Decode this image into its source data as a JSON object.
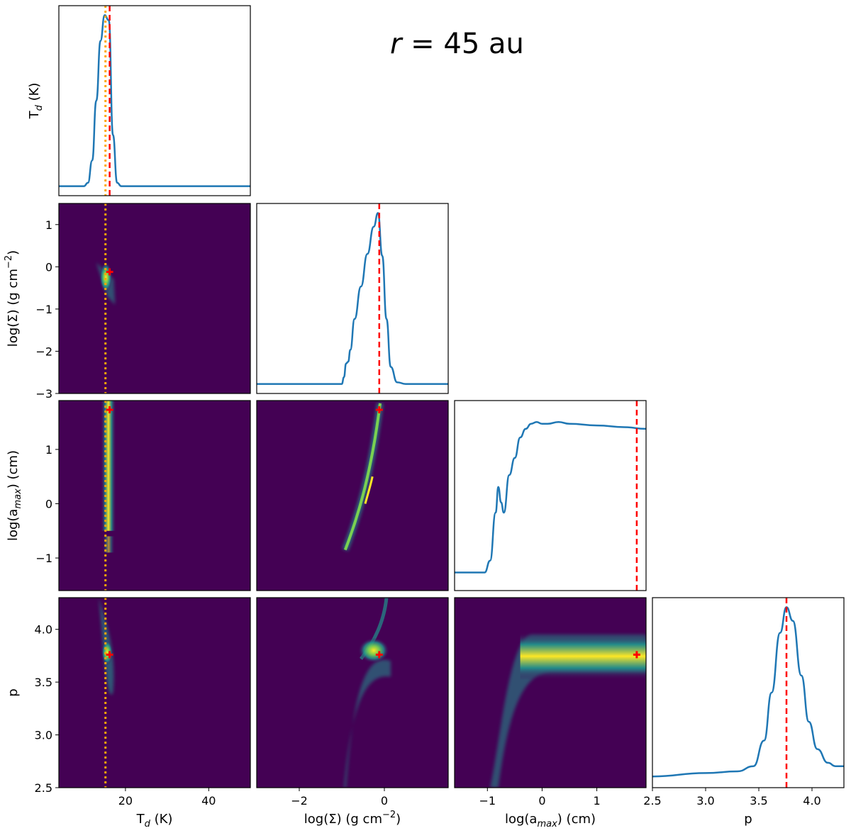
{
  "chart_data": {
    "type": "corner_plot",
    "title": "r = 45 au",
    "title_parts": {
      "var": "r",
      "rest": " = 45 au"
    },
    "params": [
      {
        "key": "Td",
        "label": "T_d (K)",
        "label_main": "T",
        "label_sub": "d",
        "label_tail": " (K)",
        "range": [
          4,
          50
        ],
        "ticks": [
          20,
          40
        ],
        "tick_labels": [
          "20",
          "40"
        ],
        "best": 16.2,
        "reference": 15.2
      },
      {
        "key": "logS",
        "label": "log(Σ) (g cm^-2)",
        "label_main": "log(Σ) (g cm",
        "label_sup": "−2",
        "label_tail": ")",
        "range": [
          -3,
          1.5
        ],
        "ticks": [
          -2,
          0
        ],
        "tick_labels": [
          "−2",
          "0"
        ],
        "y_ticks": [
          1,
          0,
          -1,
          -2,
          -3
        ],
        "y_tick_labels": [
          "1",
          "0",
          "−1",
          "−2",
          "−3"
        ],
        "best": -0.12
      },
      {
        "key": "logA",
        "label": "log(a_max) (cm)",
        "label_main": "log(a",
        "label_sub": "max",
        "label_tail": ") (cm)",
        "range": [
          -1.6,
          1.9
        ],
        "ticks": [
          -1,
          0,
          1
        ],
        "tick_labels": [
          "−1",
          "0",
          "1"
        ],
        "y_ticks": [
          1,
          0,
          -1
        ],
        "y_tick_labels": [
          "1",
          "0",
          "−1"
        ],
        "best": 1.73
      },
      {
        "key": "p",
        "label": "p",
        "label_main": "p",
        "label_tail": "",
        "range": [
          2.5,
          4.3
        ],
        "ticks": [
          2.5,
          3.0,
          3.5,
          4.0
        ],
        "tick_labels": [
          "2.5",
          "3.0",
          "3.5",
          "4.0"
        ],
        "y_ticks": [
          2.5,
          3.0,
          3.5,
          4.0
        ],
        "y_tick_labels": [
          "2.5",
          "3.0",
          "3.5",
          "4.0"
        ],
        "best": 3.76
      }
    ],
    "diagonal_label_top": {
      "label_main": "T",
      "label_sub": "d",
      "label_tail": " (K)"
    },
    "marginals": {
      "Td": {
        "x": [
          4,
          10,
          11,
          12,
          13,
          14,
          15,
          16,
          17,
          18,
          19,
          50
        ],
        "y": [
          0.0,
          0.0,
          0.02,
          0.15,
          0.5,
          0.85,
          1.0,
          0.97,
          0.3,
          0.02,
          0.0,
          0.0
        ]
      },
      "logS": {
        "x": [
          -3,
          -1.0,
          -0.95,
          -0.9,
          -0.85,
          -0.8,
          -0.7,
          -0.55,
          -0.4,
          -0.25,
          -0.15,
          -0.05,
          0.05,
          0.15,
          0.3,
          0.5,
          1.5
        ],
        "y": [
          0.0,
          0.0,
          0.04,
          0.12,
          0.13,
          0.2,
          0.38,
          0.57,
          0.76,
          0.92,
          1.0,
          0.75,
          0.38,
          0.1,
          0.01,
          0.0,
          0.0
        ]
      },
      "logA": {
        "x": [
          -1.6,
          -1.05,
          -0.95,
          -0.85,
          -0.8,
          -0.75,
          -0.7,
          -0.6,
          -0.5,
          -0.4,
          -0.3,
          -0.2,
          -0.1,
          0.0,
          0.1,
          0.3,
          0.5,
          1.0,
          1.5,
          1.9
        ],
        "y": [
          0.05,
          0.05,
          0.12,
          0.4,
          0.55,
          0.46,
          0.4,
          0.62,
          0.72,
          0.84,
          0.89,
          0.92,
          0.93,
          0.92,
          0.92,
          0.93,
          0.92,
          0.91,
          0.9,
          0.89
        ]
      },
      "p": {
        "x": [
          2.5,
          3.0,
          3.3,
          3.45,
          3.55,
          3.62,
          3.7,
          3.76,
          3.82,
          3.9,
          3.97,
          4.05,
          4.15,
          4.22,
          4.3
        ],
        "y": [
          0.01,
          0.03,
          0.04,
          0.07,
          0.22,
          0.5,
          0.85,
          1.0,
          0.92,
          0.6,
          0.33,
          0.17,
          0.09,
          0.07,
          0.07
        ]
      }
    },
    "colors": {
      "curve": "#1f77b4",
      "best_fit_line": "#ff0000",
      "reference_line": "#ffa500",
      "density_background": "#440154",
      "density_mid": "#21918c",
      "density_peak": "#fde725",
      "marker": "#ff0000"
    }
  }
}
